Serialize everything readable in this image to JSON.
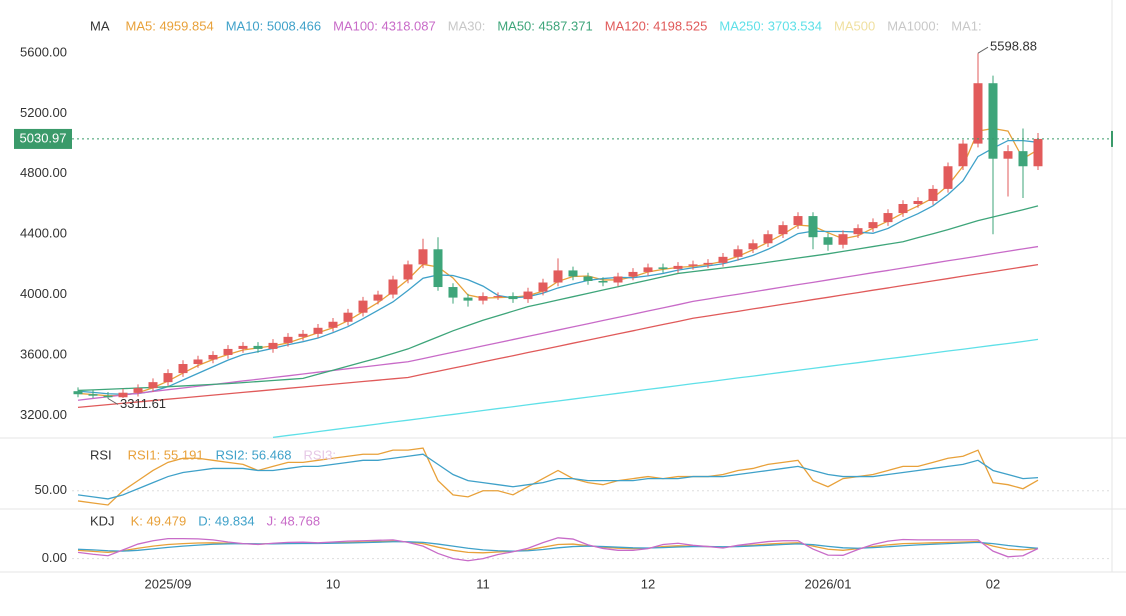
{
  "chart_data": [
    {
      "type": "candlestick",
      "title": "MA",
      "up_color": "#e25b5b",
      "down_color": "#3ea57a",
      "ylim": [
        3050,
        5885
      ],
      "yticks": [
        {
          "value": 3200,
          "label": "3200.00"
        },
        {
          "value": 3600,
          "label": "3600.00"
        },
        {
          "value": 4000,
          "label": "4000.00"
        },
        {
          "value": 4400,
          "label": "4400.00"
        },
        {
          "value": 4800,
          "label": "4800.00"
        },
        {
          "value": 5200,
          "label": "5200.00"
        },
        {
          "value": 5600,
          "label": "5600.00"
        }
      ],
      "grid": false,
      "categories": [
        null,
        null,
        null,
        null,
        null,
        null,
        "2025/09",
        null,
        null,
        null,
        null,
        null,
        null,
        null,
        null,
        null,
        null,
        "10",
        null,
        null,
        null,
        null,
        null,
        null,
        null,
        null,
        null,
        "11",
        null,
        null,
        null,
        null,
        null,
        null,
        null,
        null,
        null,
        null,
        "12",
        null,
        null,
        null,
        null,
        null,
        null,
        null,
        null,
        null,
        null,
        null,
        "2026/01",
        null,
        null,
        null,
        null,
        null,
        null,
        null,
        null,
        null,
        null,
        "02",
        null,
        null,
        null
      ],
      "open": [
        3360,
        3340,
        3330,
        3320,
        3350,
        3380,
        3420,
        3480,
        3540,
        3570,
        3600,
        3640,
        3660,
        3640,
        3680,
        3720,
        3740,
        3780,
        3820,
        3880,
        3960,
        4000,
        4100,
        4200,
        4300,
        4050,
        3980,
        3960,
        3990,
        3990,
        3970,
        4020,
        4080,
        4160,
        4120,
        4090,
        4080,
        4120,
        4150,
        4180,
        4170,
        4190,
        4200,
        4210,
        4250,
        4300,
        4340,
        4400,
        4460,
        4520,
        4380,
        4330,
        4400,
        4440,
        4480,
        4540,
        4600,
        4620,
        4700,
        4850,
        5000,
        5400,
        4900,
        4950,
        4850
      ],
      "high": [
        3385,
        3365,
        3355,
        3375,
        3405,
        3445,
        3505,
        3565,
        3595,
        3625,
        3665,
        3685,
        3685,
        3705,
        3745,
        3765,
        3805,
        3845,
        3905,
        3985,
        4025,
        4125,
        4225,
        4370,
        4380,
        4075,
        4005,
        4015,
        4015,
        4015,
        4045,
        4105,
        4240,
        4185,
        4145,
        4115,
        4145,
        4175,
        4205,
        4205,
        4215,
        4225,
        4235,
        4275,
        4325,
        4365,
        4425,
        4485,
        4545,
        4545,
        4405,
        4425,
        4465,
        4505,
        4565,
        4625,
        4645,
        4725,
        4875,
        5025,
        5598.88,
        5450,
        4990,
        5100,
        5070
      ],
      "low": [
        3320,
        3315,
        3311.61,
        3315,
        3325,
        3355,
        3395,
        3455,
        3515,
        3545,
        3575,
        3615,
        3615,
        3615,
        3655,
        3695,
        3715,
        3755,
        3795,
        3855,
        3935,
        3975,
        4075,
        4175,
        4025,
        3940,
        3920,
        3935,
        3965,
        3945,
        3945,
        3995,
        4055,
        4095,
        4065,
        4055,
        4055,
        4095,
        4125,
        4145,
        4145,
        4165,
        4175,
        4185,
        4225,
        4275,
        4315,
        4375,
        4435,
        4300,
        4290,
        4305,
        4375,
        4415,
        4455,
        4515,
        4575,
        4595,
        4675,
        4825,
        4975,
        4400,
        4650,
        4640,
        4825
      ],
      "close": [
        3340,
        3330,
        3320,
        3350,
        3380,
        3420,
        3480,
        3540,
        3570,
        3600,
        3640,
        3660,
        3640,
        3680,
        3720,
        3740,
        3780,
        3820,
        3880,
        3960,
        4000,
        4100,
        4200,
        4300,
        4050,
        3980,
        3960,
        3990,
        3990,
        3970,
        4020,
        4080,
        4160,
        4120,
        4090,
        4080,
        4120,
        4150,
        4180,
        4170,
        4190,
        4200,
        4210,
        4250,
        4300,
        4340,
        4400,
        4460,
        4520,
        4380,
        4330,
        4400,
        4440,
        4480,
        4540,
        4600,
        4620,
        4700,
        4850,
        5000,
        5400,
        4900,
        4950,
        4850,
        5030.97
      ],
      "series": [
        {
          "name": "MA5: 4959.854",
          "color": "#e8a13a",
          "values": [
            3345,
            3338,
            3330,
            3333,
            3350,
            3383,
            3427,
            3480,
            3530,
            3570,
            3603,
            3633,
            3647,
            3660,
            3680,
            3713,
            3747,
            3780,
            3827,
            3887,
            3947,
            4020,
            4100,
            4200,
            4183,
            4110,
            3997,
            3977,
            3980,
            3983,
            3993,
            4023,
            4087,
            4120,
            4123,
            4097,
            4097,
            4117,
            4150,
            4167,
            4180,
            4187,
            4200,
            4220,
            4253,
            4297,
            4347,
            4400,
            4460,
            4453,
            4410,
            4370,
            4390,
            4440,
            4487,
            4540,
            4587,
            4640,
            4723,
            4850,
            5083,
            5100,
            5083,
            4900,
            4959.854
          ]
        },
        {
          "name": "MA10: 5008.466",
          "color": "#3fa1c9",
          "values": [
            3360,
            3352,
            3343,
            3340,
            3344,
            3360,
            3390,
            3434,
            3478,
            3522,
            3566,
            3602,
            3622,
            3644,
            3668,
            3688,
            3712,
            3748,
            3788,
            3840,
            3896,
            3952,
            4028,
            4108,
            4130,
            4126,
            4098,
            4056,
            3994,
            3978,
            3986,
            4010,
            4044,
            4070,
            4094,
            4106,
            4114,
            4112,
            4124,
            4140,
            4162,
            4178,
            4190,
            4204,
            4230,
            4260,
            4300,
            4350,
            4404,
            4420,
            4418,
            4418,
            4414,
            4406,
            4438,
            4492,
            4536,
            4588,
            4662,
            4754,
            4914,
            4970,
            5020,
            5020,
            5008.466
          ]
        },
        {
          "name": "MA100: 4318.087",
          "color": "#c86bc8",
          "values": [
            3300,
            3312,
            3323,
            3335,
            3346,
            3358,
            3370,
            3381,
            3393,
            3404,
            3416,
            3428,
            3439,
            3451,
            3462,
            3474,
            3486,
            3497,
            3509,
            3520,
            3532,
            3544,
            3555,
            3576,
            3597,
            3618,
            3639,
            3660,
            3681,
            3702,
            3723,
            3744,
            3765,
            3786,
            3807,
            3828,
            3849,
            3870,
            3891,
            3912,
            3933,
            3955,
            3971,
            3987,
            4002,
            4018,
            4034,
            4050,
            4066,
            4081,
            4097,
            4113,
            4129,
            4145,
            4160,
            4176,
            4192,
            4208,
            4224,
            4239,
            4255,
            4271,
            4287,
            4303,
            4318.087
          ]
        },
        {
          "name": "MA30:",
          "color": "#c8c8c8"
        },
        {
          "name": "MA50: 4587.371",
          "color": "#3ea57a",
          "values": [
            3365,
            3369,
            3373,
            3377,
            3381,
            3385,
            3390,
            3395,
            3400,
            3405,
            3410,
            3417,
            3424,
            3431,
            3438,
            3445,
            3472,
            3499,
            3526,
            3553,
            3580,
            3610,
            3640,
            3680,
            3720,
            3760,
            3795,
            3830,
            3860,
            3890,
            3920,
            3942,
            3964,
            3986,
            4008,
            4030,
            4052,
            4074,
            4096,
            4118,
            4140,
            4152,
            4164,
            4176,
            4188,
            4200,
            4214,
            4228,
            4242,
            4256,
            4270,
            4286,
            4302,
            4318,
            4334,
            4350,
            4377,
            4403,
            4430,
            4460,
            4490,
            4514,
            4538,
            4562,
            4587.371
          ]
        },
        {
          "name": "MA120: 4198.525",
          "color": "#e05a5a",
          "values": [
            3253,
            3262,
            3271,
            3280,
            3289,
            3298,
            3307,
            3316,
            3325,
            3334,
            3343,
            3352,
            3361,
            3370,
            3379,
            3388,
            3397,
            3406,
            3415,
            3424,
            3433,
            3442,
            3451,
            3472,
            3492,
            3513,
            3533,
            3554,
            3575,
            3595,
            3616,
            3636,
            3657,
            3678,
            3698,
            3719,
            3740,
            3760,
            3781,
            3802,
            3822,
            3843,
            3858,
            3874,
            3889,
            3905,
            3920,
            3936,
            3951,
            3967,
            3982,
            3998,
            4013,
            4029,
            4044,
            4060,
            4075,
            4091,
            4106,
            4122,
            4137,
            4152,
            4168,
            4183,
            4198.525
          ]
        },
        {
          "name": "MA250: 3703.534",
          "color": "#5fe0e8",
          "values": [
            null,
            null,
            null,
            null,
            null,
            null,
            null,
            null,
            null,
            null,
            null,
            null,
            null,
            3054,
            3067,
            3079,
            3092,
            3105,
            3118,
            3130,
            3143,
            3156,
            3168,
            3181,
            3194,
            3206,
            3219,
            3232,
            3245,
            3257,
            3270,
            3283,
            3295,
            3308,
            3321,
            3333,
            3346,
            3359,
            3372,
            3384,
            3397,
            3410,
            3422,
            3435,
            3448,
            3460,
            3473,
            3486,
            3499,
            3511,
            3524,
            3537,
            3549,
            3562,
            3575,
            3587,
            3600,
            3613,
            3626,
            3638,
            3651,
            3664,
            3676,
            3689,
            3703.534
          ]
        },
        {
          "name": "MA500",
          "color": "#f0e0a0"
        },
        {
          "name": "MA1000:",
          "color": "#c8c8c8"
        },
        {
          "name": "MA1:",
          "color": "#c8c8c8"
        }
      ]
    },
    {
      "type": "line",
      "title": "RSI",
      "ylim": [
        43,
        75
      ],
      "yticks": [
        {
          "value": 50,
          "label": "50.00"
        }
      ],
      "grid": true,
      "series": [
        {
          "name": "RSI1: 55.191",
          "color": "#e8a13a",
          "values": [
            45,
            44,
            43,
            50,
            55,
            60,
            64,
            66,
            66,
            65,
            64,
            63,
            60,
            62,
            64,
            64,
            65,
            66,
            67,
            68,
            68,
            70,
            70,
            71,
            55,
            48,
            47,
            50,
            50,
            48,
            52,
            56,
            60,
            56,
            54,
            53,
            55,
            56,
            57,
            56,
            57,
            57,
            57,
            58,
            60,
            61,
            63,
            64,
            65,
            55,
            52,
            56,
            57,
            58,
            60,
            62,
            62,
            64,
            66,
            67,
            70,
            54,
            53,
            51,
            55.191
          ]
        },
        {
          "name": "RSI2: 56.468",
          "color": "#3fa1c9",
          "values": [
            48,
            47,
            46,
            48,
            51,
            54,
            57,
            59,
            60,
            61,
            61,
            61,
            60,
            60,
            61,
            62,
            62,
            63,
            64,
            65,
            65,
            66,
            67,
            68,
            63,
            58,
            55,
            54,
            53,
            52,
            53,
            54,
            56,
            56,
            55,
            55,
            55,
            55,
            56,
            56,
            56,
            57,
            57,
            57,
            58,
            59,
            60,
            61,
            62,
            60,
            58,
            57,
            57,
            57,
            58,
            59,
            60,
            61,
            62,
            63,
            65,
            60,
            58,
            56,
            56.468
          ]
        },
        {
          "name": "RSI3:",
          "color": "#e6c8e6"
        }
      ]
    },
    {
      "type": "line",
      "title": "KDJ",
      "ylim": [
        -40,
        195
      ],
      "yticks": [
        {
          "value": 0,
          "label": "0.00"
        }
      ],
      "grid": true,
      "series": [
        {
          "name": "K: 49.479",
          "color": "#e8a13a",
          "values": [
            40,
            35,
            30,
            38,
            50,
            60,
            68,
            72,
            75,
            76,
            74,
            72,
            70,
            72,
            74,
            75,
            74,
            76,
            78,
            80,
            82,
            84,
            80,
            72,
            55,
            40,
            30,
            28,
            32,
            35,
            42,
            55,
            68,
            70,
            62,
            55,
            50,
            48,
            50,
            58,
            62,
            60,
            58,
            55,
            60,
            65,
            70,
            74,
            76,
            60,
            45,
            40,
            48,
            58,
            66,
            72,
            74,
            76,
            78,
            80,
            82,
            60,
            45,
            42,
            49.479
          ]
        },
        {
          "name": "D: 49.834",
          "color": "#3fa1c9",
          "values": [
            45,
            42,
            38,
            36,
            40,
            47,
            54,
            60,
            65,
            69,
            71,
            72,
            71,
            71,
            72,
            73,
            73,
            74,
            75,
            77,
            79,
            81,
            81,
            78,
            70,
            60,
            50,
            42,
            38,
            36,
            38,
            44,
            52,
            58,
            60,
            58,
            55,
            52,
            51,
            53,
            56,
            58,
            58,
            57,
            58,
            61,
            64,
            68,
            71,
            67,
            59,
            52,
            50,
            53,
            57,
            62,
            66,
            69,
            72,
            75,
            78,
            72,
            63,
            56,
            49.834
          ]
        },
        {
          "name": "J: 48.768",
          "color": "#c86bc8",
          "values": [
            30,
            21,
            14,
            42,
            70,
            86,
            96,
            96,
            95,
            90,
            80,
            72,
            68,
            74,
            78,
            79,
            76,
            80,
            84,
            86,
            88,
            90,
            78,
            60,
            25,
            0,
            -10,
            0,
            20,
            33,
            50,
            77,
            100,
            94,
            66,
            49,
            40,
            40,
            48,
            68,
            74,
            64,
            58,
            51,
            64,
            73,
            82,
            86,
            86,
            46,
            17,
            16,
            44,
            68,
            84,
            92,
            90,
            90,
            90,
            90,
            90,
            36,
            9,
            14,
            48.768
          ]
        }
      ]
    }
  ]
}
